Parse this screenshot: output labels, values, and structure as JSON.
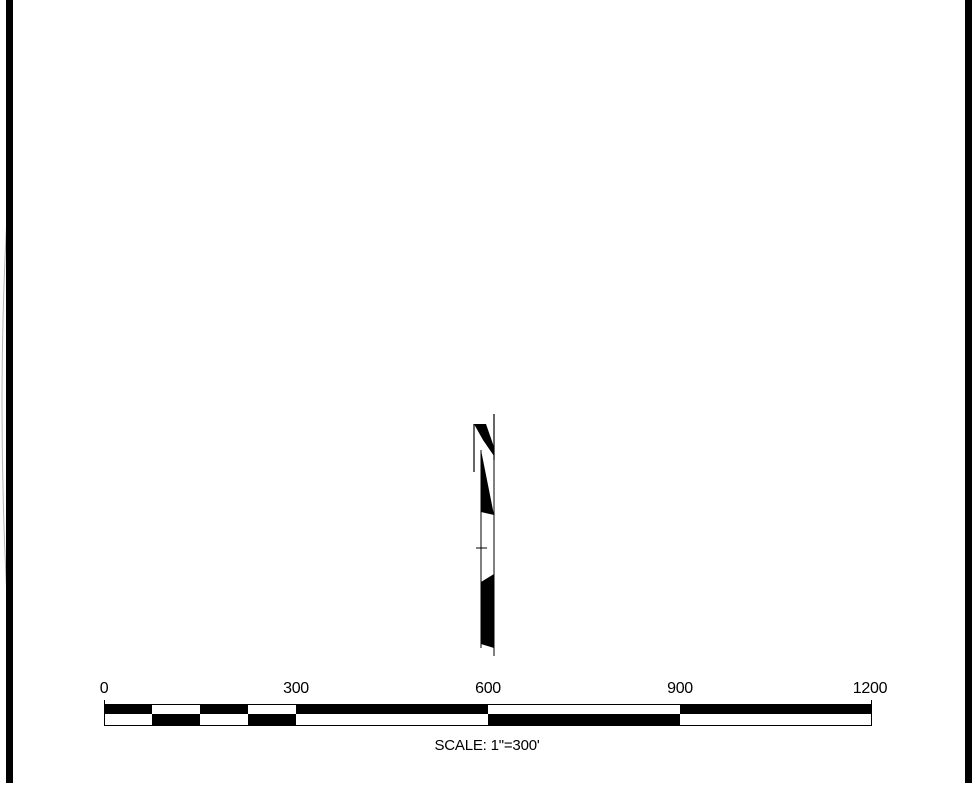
{
  "north_arrow": {
    "letter": "N"
  },
  "scale_bar": {
    "tick_labels": [
      "0",
      "300",
      "600",
      "900",
      "1200"
    ],
    "caption": "SCALE: 1\"=300'"
  },
  "colors": {
    "ink": "#000000",
    "paper": "#ffffff"
  }
}
